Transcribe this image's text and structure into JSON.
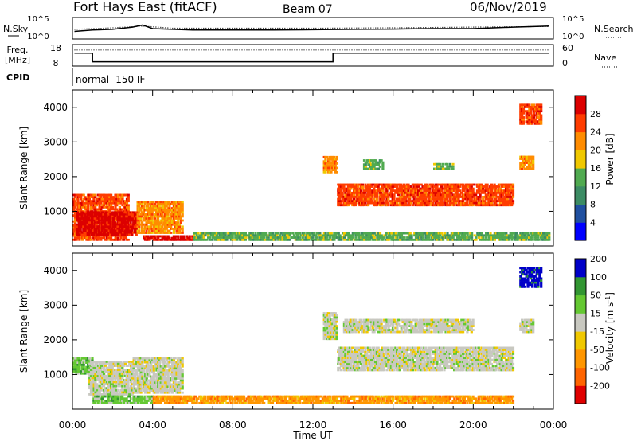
{
  "header": {
    "radar": "Fort Hays East (fitACF)",
    "beam": "Beam 07",
    "date": "06/Nov/2019"
  },
  "colors": {
    "power": [
      "#0000ff",
      "#2050a0",
      "#3c8c64",
      "#50aa50",
      "#f0c800",
      "#ff8c00",
      "#ff3c00",
      "#dc0000"
    ],
    "velocity": [
      "#e00000",
      "#ff6400",
      "#ff9600",
      "#f0c800",
      "#c8c8c0",
      "#64c832",
      "#329632",
      "#0000c8"
    ]
  },
  "chart_data": [
    {
      "type": "line",
      "panel": "noise",
      "left_label": "N.Sky",
      "right_label": "N.Search",
      "left_ticks": [
        "10^5",
        "10^0"
      ],
      "right_ticks": [
        "10^5",
        "10^0"
      ],
      "series": [
        {
          "style": "solid",
          "x": [
            0.1,
            1,
            2,
            3,
            3.5,
            4,
            5,
            6,
            8,
            10,
            12,
            14,
            16,
            18,
            20,
            22,
            23.8
          ],
          "y": [
            0.35,
            0.42,
            0.45,
            0.55,
            0.65,
            0.48,
            0.45,
            0.42,
            0.42,
            0.42,
            0.43,
            0.45,
            0.46,
            0.48,
            0.48,
            0.55,
            0.6
          ]
        },
        {
          "style": "dotted",
          "x": [
            0.1,
            2,
            3.5,
            5,
            8,
            12,
            16,
            20,
            23.8
          ],
          "y": [
            0.45,
            0.52,
            0.6,
            0.5,
            0.5,
            0.5,
            0.52,
            0.55,
            0.58
          ]
        }
      ]
    },
    {
      "type": "line",
      "panel": "frequency",
      "left_label": "Freq.",
      "left_unit": "[MHz]",
      "right_label": "Nave",
      "left_ticks": [
        "18",
        "8"
      ],
      "right_ticks": [
        "60",
        "0"
      ],
      "series": [
        {
          "style": "solid",
          "x": [
            0.1,
            1,
            1,
            13,
            13,
            23.8
          ],
          "y": [
            0.6,
            0.6,
            0.2,
            0.2,
            0.6,
            0.6
          ]
        },
        {
          "style": "dotted",
          "x": [
            0.1,
            23.8
          ],
          "y": [
            0.75,
            0.75
          ]
        }
      ]
    },
    {
      "type": "table",
      "panel": "cpid",
      "label": "CPID",
      "value": "normal -150 IF"
    },
    {
      "type": "heatmap",
      "panel": "power",
      "ylabel": "Slant Range [km]",
      "cbar_label": "Power [dB]",
      "y_ticks": [
        "1000",
        "2000",
        "3000",
        "4000"
      ],
      "cbar_ticks": [
        "4",
        "8",
        "12",
        "16",
        "20",
        "24",
        "28"
      ],
      "bands": [
        {
          "t0": 0.0,
          "t1": 2.8,
          "r0": 150,
          "r1": 1500,
          "level": 6
        },
        {
          "t0": 0.2,
          "t1": 3.2,
          "r0": 300,
          "r1": 1000,
          "level": 7
        },
        {
          "t0": 3.2,
          "t1": 5.5,
          "r0": 350,
          "r1": 1300,
          "level": 5
        },
        {
          "t0": 3.5,
          "t1": 6.0,
          "r0": 150,
          "r1": 300,
          "level": 7
        },
        {
          "t0": 6.0,
          "t1": 23.8,
          "r0": 150,
          "r1": 400,
          "level": 3
        },
        {
          "t0": 12.5,
          "t1": 13.2,
          "r0": 2100,
          "r1": 2600,
          "level": 5
        },
        {
          "t0": 13.2,
          "t1": 22.0,
          "r0": 1150,
          "r1": 1800,
          "level": 6
        },
        {
          "t0": 14.5,
          "t1": 15.5,
          "r0": 2200,
          "r1": 2500,
          "level": 3
        },
        {
          "t0": 18.0,
          "t1": 19.0,
          "r0": 2200,
          "r1": 2400,
          "level": 3
        },
        {
          "t0": 22.3,
          "t1": 23.4,
          "r0": 3500,
          "r1": 4100,
          "level": 6
        },
        {
          "t0": 22.3,
          "t1": 23.0,
          "r0": 2200,
          "r1": 2600,
          "level": 5
        }
      ]
    },
    {
      "type": "heatmap",
      "panel": "velocity",
      "ylabel": "Slant Range [km]",
      "xlabel": "Time UT",
      "cbar_label": "Velocity [m s",
      "cbar_label_sup": "-1",
      "x_ticks": [
        "00:00",
        "04:00",
        "08:00",
        "12:00",
        "16:00",
        "20:00",
        "00:00"
      ],
      "y_ticks": [
        "1000",
        "2000",
        "3000",
        "4000"
      ],
      "cbar_ticks": [
        "-200",
        "-100",
        "-50",
        "-15",
        "15",
        "50",
        "100",
        "200"
      ],
      "bands": [
        {
          "t0": 0.0,
          "t1": 1.0,
          "r0": 1000,
          "r1": 1500,
          "level": 5
        },
        {
          "t0": 0.8,
          "t1": 3.0,
          "r0": 400,
          "r1": 1400,
          "level": 4
        },
        {
          "t0": 3.0,
          "t1": 5.5,
          "r0": 450,
          "r1": 1500,
          "level": 4
        },
        {
          "t0": 1.0,
          "t1": 4.0,
          "r0": 150,
          "r1": 400,
          "level": 5
        },
        {
          "t0": 4.0,
          "t1": 12.5,
          "r0": 150,
          "r1": 400,
          "level": 2
        },
        {
          "t0": 12.5,
          "t1": 22.0,
          "r0": 150,
          "r1": 400,
          "level": 2
        },
        {
          "t0": 13.2,
          "t1": 22.0,
          "r0": 1100,
          "r1": 1800,
          "level": 4
        },
        {
          "t0": 12.5,
          "t1": 13.2,
          "r0": 2000,
          "r1": 2800,
          "level": 4
        },
        {
          "t0": 13.5,
          "t1": 20.0,
          "r0": 2200,
          "r1": 2600,
          "level": 4
        },
        {
          "t0": 22.3,
          "t1": 23.4,
          "r0": 3500,
          "r1": 4100,
          "level": 7
        },
        {
          "t0": 22.3,
          "t1": 23.0,
          "r0": 2200,
          "r1": 2600,
          "level": 4
        }
      ]
    }
  ]
}
